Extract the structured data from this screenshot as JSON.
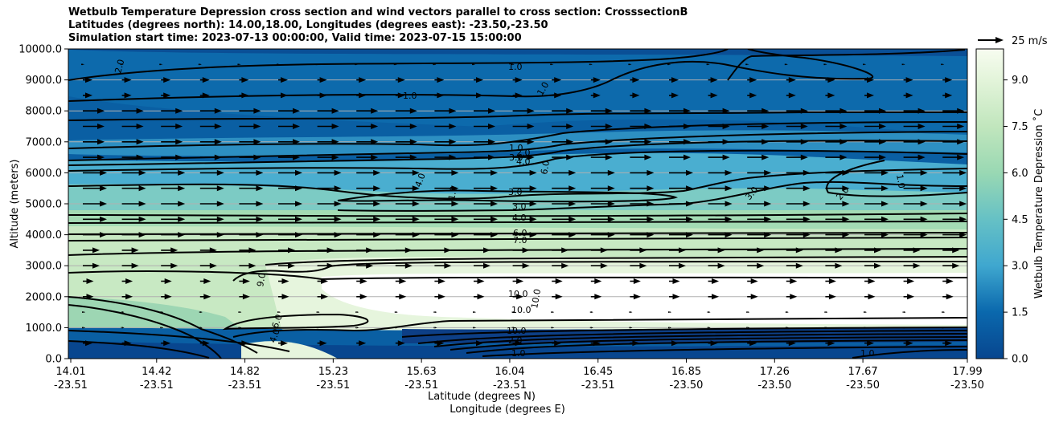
{
  "chart_data": {
    "type": "contour",
    "title_lines": [
      "Wetbulb Temperature Depression cross section and wind vectors parallel to cross section: CrosssectionB",
      "Latitudes (degrees north): 14.00,18.00, Longitudes (degrees east): -23.50,-23.50",
      "Simulation start time: 2023-07-13 00:00:00, Valid time: 2023-07-15 15:00:00"
    ],
    "ylabel": "Altitude (meters)",
    "xlabel_lat": "Latitude (degrees N)",
    "xlabel_lon": "Longitude (degrees E)",
    "ylim": [
      0,
      10000
    ],
    "y_ticks": [
      "0.0",
      "1000.0",
      "2000.0",
      "3000.0",
      "4000.0",
      "5000.0",
      "6000.0",
      "7000.0",
      "8000.0",
      "9000.0",
      "10000.0"
    ],
    "x_ticks": [
      {
        "lat": "14.01",
        "lon": "-23.51"
      },
      {
        "lat": "14.42",
        "lon": "-23.51"
      },
      {
        "lat": "14.82",
        "lon": "-23.51"
      },
      {
        "lat": "15.23",
        "lon": "-23.51"
      },
      {
        "lat": "15.63",
        "lon": "-23.51"
      },
      {
        "lat": "16.04",
        "lon": "-23.51"
      },
      {
        "lat": "16.45",
        "lon": "-23.51"
      },
      {
        "lat": "16.85",
        "lon": "-23.50"
      },
      {
        "lat": "17.26",
        "lon": "-23.50"
      },
      {
        "lat": "17.67",
        "lon": "-23.50"
      },
      {
        "lat": "17.99",
        "lon": "-23.50"
      }
    ],
    "colorbar": {
      "label": "Wetbulb Temperature Depression ˚C",
      "range": [
        0,
        10
      ],
      "ticks": [
        "0.0",
        "1.5",
        "3.0",
        "4.5",
        "6.0",
        "7.5",
        "9.0"
      ]
    },
    "quiver_key": "25 m/s",
    "contour_labels": [
      "1.0",
      "2.0",
      "3.0",
      "4.0",
      "6.0",
      "7.0",
      "9.0",
      "10.0"
    ],
    "grid": true
  }
}
